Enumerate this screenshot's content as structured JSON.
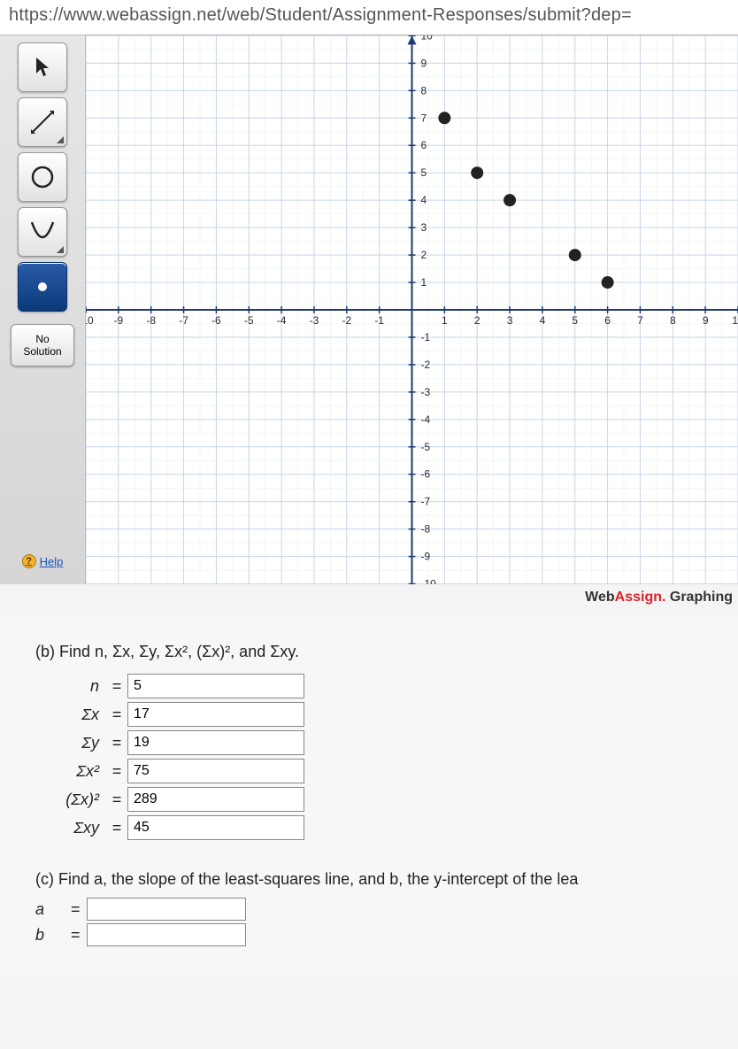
{
  "url": "https://www.webassign.net/web/Student/Assignment-Responses/submit?dep=",
  "toolbar": {
    "tools": [
      {
        "name": "pointer-tool",
        "icon": "pointer"
      },
      {
        "name": "line-tool",
        "icon": "line",
        "corner": true
      },
      {
        "name": "circle-tool",
        "icon": "circle"
      },
      {
        "name": "parabola-tool",
        "icon": "parabola",
        "corner": true
      },
      {
        "name": "point-tool",
        "icon": "dot",
        "active": true
      }
    ],
    "no_solution_label": "No Solution",
    "help_label": "Help"
  },
  "chart": {
    "type": "scatter",
    "xlim": [
      -10,
      10
    ],
    "ylim": [
      -10,
      10
    ],
    "tick_step": 1,
    "grid_color": "#c7d6e8",
    "subgrid_color": "#e4ecf5",
    "axis_color": "#1a3a73",
    "label_color": "#2a2a2a",
    "label_fontsize": 12,
    "background_color": "#ffffff",
    "point_color": "#222222",
    "point_radius": 7,
    "points": [
      {
        "x": 1,
        "y": 7
      },
      {
        "x": 2,
        "y": 5
      },
      {
        "x": 3,
        "y": 4
      },
      {
        "x": 5,
        "y": 2
      },
      {
        "x": 6,
        "y": 1
      }
    ]
  },
  "branding": {
    "part1": "Web",
    "part2": "Assign.",
    "part3": " Graphing"
  },
  "partB": {
    "prompt": "(b) Find n, Σx, Σy, Σx², (Σx)², and Σxy.",
    "rows": [
      {
        "label": "n",
        "value": "5"
      },
      {
        "label": "Σx",
        "value": "17"
      },
      {
        "label": "Σy",
        "value": "19"
      },
      {
        "label": "Σx²",
        "value": "75"
      },
      {
        "label": "(Σx)²",
        "value": "289"
      },
      {
        "label": "Σxy",
        "value": "45"
      }
    ]
  },
  "partC": {
    "prompt": "(c) Find a, the slope of the least-squares line, and b, the y-intercept of the lea",
    "rows": [
      {
        "label": "a",
        "value": ""
      },
      {
        "label": "b",
        "value": ""
      }
    ]
  }
}
